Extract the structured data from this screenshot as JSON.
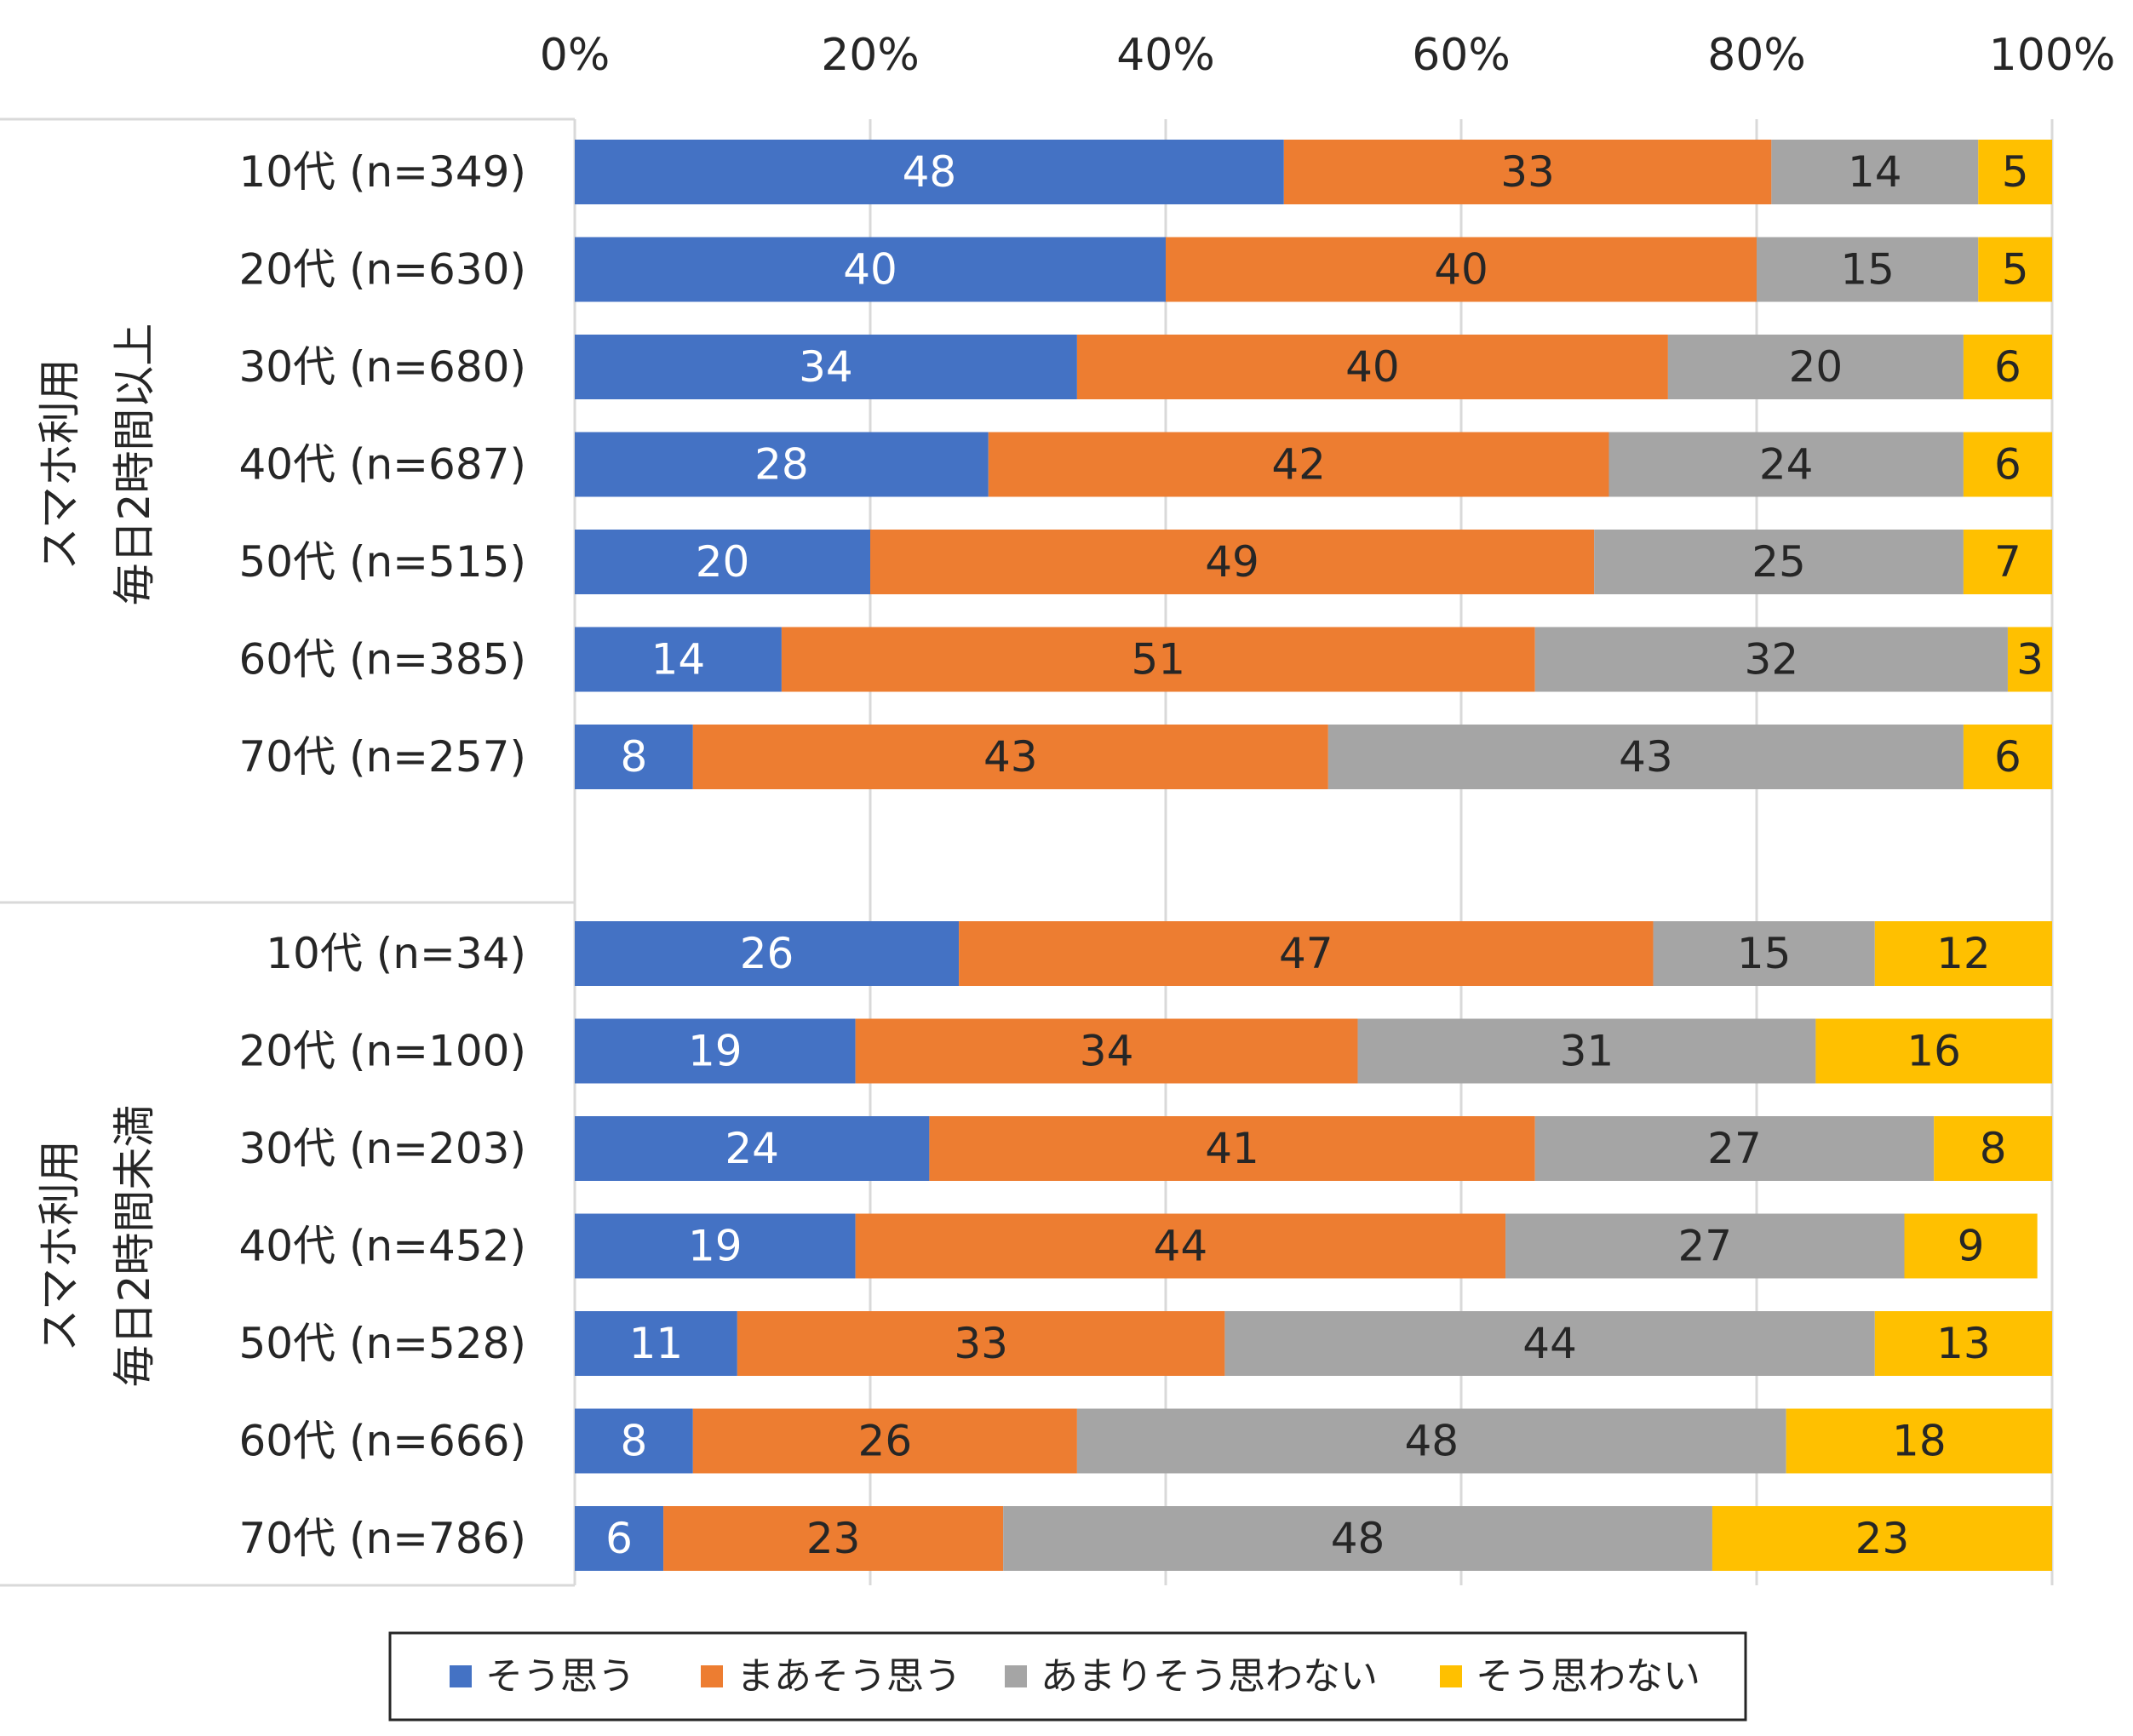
{
  "chart_data": {
    "type": "bar",
    "orientation": "horizontal",
    "stacked": true,
    "percent_axis": true,
    "xlim": [
      0,
      100
    ],
    "xticks": [
      "0%",
      "20%",
      "40%",
      "60%",
      "80%",
      "100%"
    ],
    "gridlines": true,
    "legend_position": "bottom",
    "colors": [
      "#4472C4",
      "#ED7D31",
      "#A5A5A5",
      "#FFC000"
    ],
    "label_colors": [
      "#ffffff",
      "#262626",
      "#262626",
      "#262626"
    ],
    "series": [
      {
        "name": "そう思う"
      },
      {
        "name": "まあそう思う"
      },
      {
        "name": "あまりそう思わない"
      },
      {
        "name": "そう思わない"
      }
    ],
    "groups": [
      {
        "label_lines": [
          "スマホ利用",
          "毎日2時間以上"
        ],
        "rows": [
          {
            "label": "10代 (n=349)",
            "values": [
              48,
              33,
              14,
              5
            ]
          },
          {
            "label": "20代 (n=630)",
            "values": [
              40,
              40,
              15,
              5
            ]
          },
          {
            "label": "30代 (n=680)",
            "values": [
              34,
              40,
              20,
              6
            ]
          },
          {
            "label": "40代 (n=687)",
            "values": [
              28,
              42,
              24,
              6
            ]
          },
          {
            "label": "50代 (n=515)",
            "values": [
              20,
              49,
              25,
              7
            ]
          },
          {
            "label": "60代 (n=385)",
            "values": [
              14,
              51,
              32,
              3
            ]
          },
          {
            "label": "70代 (n=257)",
            "values": [
              8,
              43,
              43,
              6
            ]
          }
        ]
      },
      {
        "label_lines": [
          "スマホ利用",
          "毎日2時間未満"
        ],
        "rows": [
          {
            "label": "10代 (n=34)",
            "values": [
              26,
              47,
              15,
              12
            ]
          },
          {
            "label": "20代 (n=100)",
            "values": [
              19,
              34,
              31,
              16
            ]
          },
          {
            "label": "30代 (n=203)",
            "values": [
              24,
              41,
              27,
              8
            ]
          },
          {
            "label": "40代 (n=452)",
            "values": [
              19,
              44,
              27,
              9
            ]
          },
          {
            "label": "50代 (n=528)",
            "values": [
              11,
              33,
              44,
              13
            ]
          },
          {
            "label": "60代 (n=666)",
            "values": [
              8,
              26,
              48,
              18
            ]
          },
          {
            "label": "70代 (n=786)",
            "values": [
              6,
              23,
              48,
              23
            ]
          }
        ]
      }
    ]
  }
}
